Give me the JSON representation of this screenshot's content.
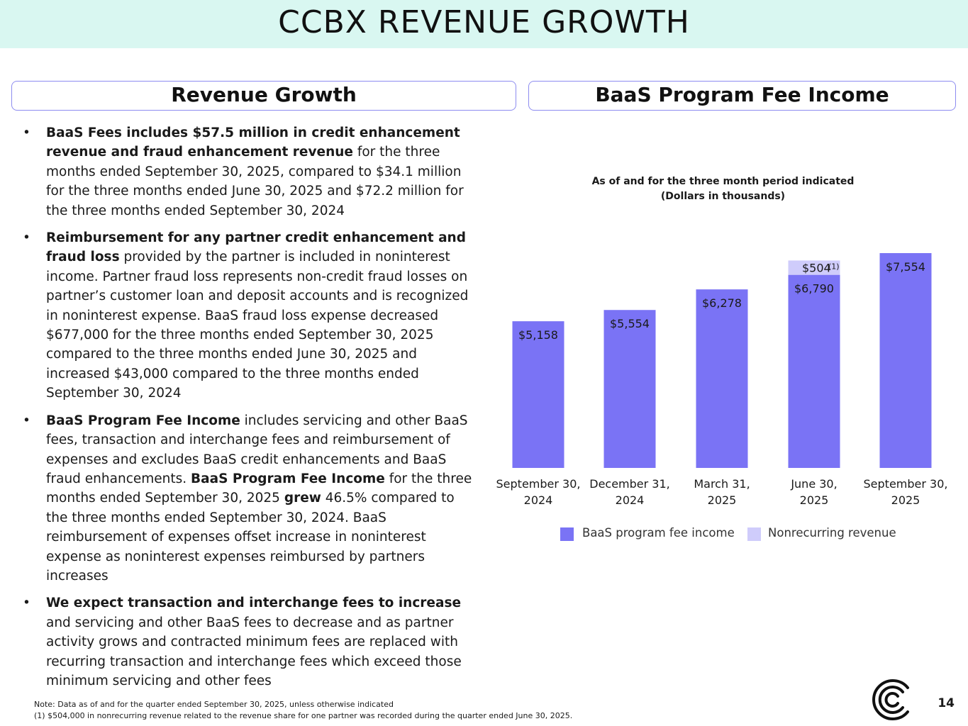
{
  "header": {
    "title": "CCBX REVENUE GROWTH"
  },
  "left_panel": {
    "title": "Revenue Growth",
    "bullets": [
      {
        "marker": "•",
        "segments": [
          {
            "text": "BaaS Fees includes $57.5 million in credit enhancement revenue and fraud enhancement revenue",
            "bold": true
          },
          {
            "text": " for the three months ended September 30, 2025, compared to $34.1 million for the three months ended June 30, 2025 and $72.2 million for the three months ended September 30, 2024",
            "bold": false
          }
        ]
      },
      {
        "marker": "•",
        "segments": [
          {
            "text": "Reimbursement for any partner credit enhancement and fraud loss",
            "bold": true
          },
          {
            "text": " provided by the partner is included in noninterest income. Partner fraud loss represents non-credit fraud losses on partner’s customer loan and deposit accounts and is recognized in noninterest expense.  BaaS fraud loss expense decreased $677,000 for the three months ended September 30, 2025 compared to the three months ended June 30, 2025 and increased $43,000 compared to the three months ended September 30, 2024",
            "bold": false
          }
        ]
      },
      {
        "marker": "•",
        "segments": [
          {
            "text": "BaaS Program Fee Income",
            "bold": true
          },
          {
            "text": " includes servicing and other BaaS fees, transaction and  interchange fees and reimbursement of expenses and excludes BaaS credit enhancements and BaaS fraud enhancements.  ",
            "bold": false
          },
          {
            "text": "BaaS Program Fee Income",
            "bold": true
          },
          {
            "text": " for the three months ended September 30, 2025 ",
            "bold": false
          },
          {
            "text": "grew",
            "bold": true
          },
          {
            "text": " 46.5% compared to the three months ended September 30, 2024.  BaaS reimbursement of expenses offset increase in noninterest expense as noninterest expenses reimbursed by partners increases",
            "bold": false
          }
        ]
      },
      {
        "marker": "•",
        "segments": [
          {
            "text": "We expect transaction and interchange fees to increase",
            "bold": true
          },
          {
            "text": " and servicing and other BaaS fees to decrease and as partner activity grows and contracted minimum fees are replaced with recurring transaction and interchange fees which exceed those minimum servicing and other fees",
            "bold": false
          }
        ]
      }
    ]
  },
  "right_panel": {
    "title": "BaaS Program Fee Income"
  },
  "chart_data": {
    "type": "bar",
    "stacked": true,
    "title": "As of and for the three month period indicated",
    "subtitle": "(Dollars in thousands)",
    "categories": [
      [
        "September 30,",
        "2024"
      ],
      [
        "December 31,",
        "2024"
      ],
      [
        "March 31,",
        "2025"
      ],
      [
        "June 30,",
        "2025"
      ],
      [
        "September 30,",
        "2025"
      ]
    ],
    "series": [
      {
        "name": "BaaS program fee income",
        "color": "#7a73f5",
        "values": [
          5158,
          5554,
          6278,
          6790,
          7554
        ],
        "labels": [
          "$5,158",
          "$5,554",
          "$6,278",
          "$6,790",
          "$7,554"
        ]
      },
      {
        "name": "Nonrecurring revenue",
        "color": "#cfccfb",
        "values": [
          0,
          0,
          0,
          504,
          0
        ],
        "labels": [
          "",
          "",
          "",
          "$504",
          ""
        ],
        "label_superscript": "(1)"
      }
    ],
    "ylim": [
      0,
      7554
    ],
    "grid": false,
    "legend": "bottom"
  },
  "footer": {
    "notes": [
      "Note:  Data as of and for the quarter ended September 30, 2025, unless otherwise indicated",
      "(1)  $504,000 in nonrecurring revenue related to the revenue share for one partner was recorded during the quarter ended June 30, 2025."
    ],
    "page_number": "14",
    "logo_icon": "ccb-logo-icon"
  }
}
